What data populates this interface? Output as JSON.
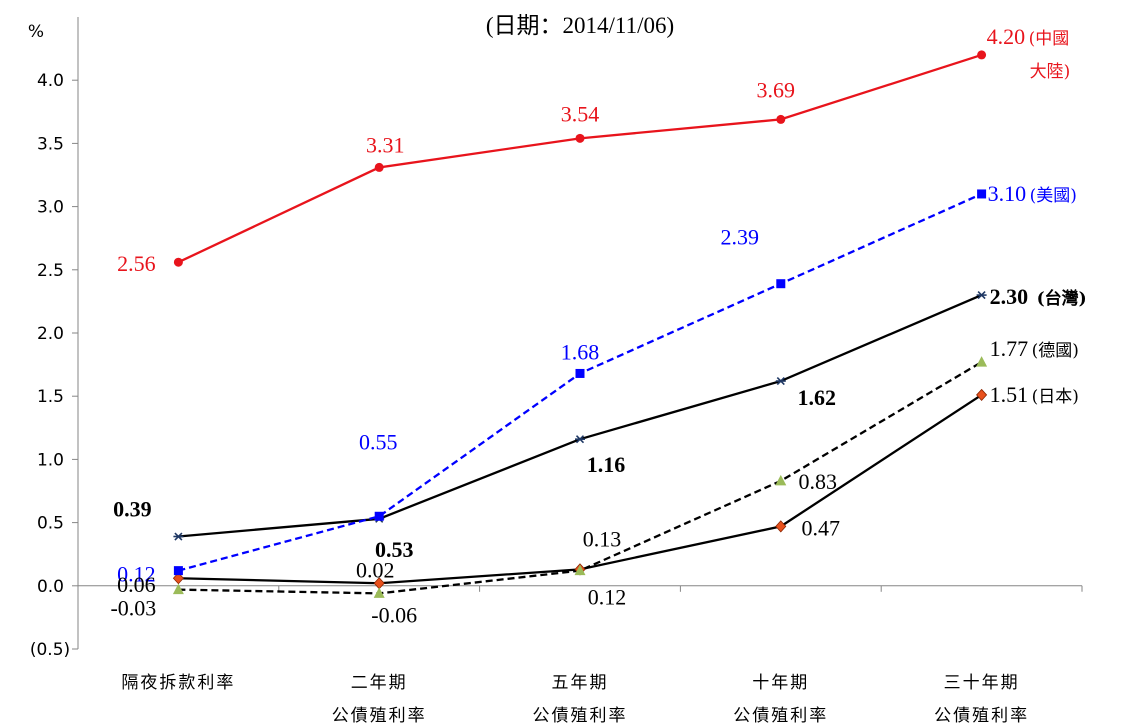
{
  "chart_data": {
    "type": "line",
    "title": "(日期：2014/11/06)",
    "y_unit_label": "%",
    "ylim": [
      -0.5,
      4.5
    ],
    "y_ticks": [
      "(0.5)",
      "0.0",
      "0.5",
      "1.0",
      "1.5",
      "2.0",
      "2.5",
      "3.0",
      "3.5",
      "4.0"
    ],
    "y_tick_values": [
      -0.5,
      0,
      0.5,
      1.0,
      1.5,
      2.0,
      2.5,
      3.0,
      3.5,
      4.0
    ],
    "categories": [
      [
        "隔夜拆款利率"
      ],
      [
        "二年期",
        "公債殖利率"
      ],
      [
        "五年期",
        "公債殖利率"
      ],
      [
        "十年期",
        "公債殖利率"
      ],
      [
        "三十年期",
        "公債殖利率"
      ]
    ],
    "grid": false,
    "series": [
      {
        "name": "(中國大陸)",
        "color": "#E8141C",
        "dash": "solid",
        "marker": "circle",
        "values": [
          2.56,
          3.31,
          3.54,
          3.69,
          4.2
        ],
        "labels": [
          "2.56",
          "3.31",
          "3.54",
          "3.69",
          "4.20"
        ],
        "bold": false
      },
      {
        "name": "(美國)",
        "color": "#0000FF",
        "dash": "dashed",
        "marker": "square",
        "values": [
          0.12,
          0.55,
          1.68,
          2.39,
          3.1
        ],
        "labels": [
          "0.12",
          "0.55",
          "1.68",
          "2.39",
          "3.10"
        ],
        "bold": false
      },
      {
        "name": "(台灣)",
        "color": "#000000",
        "dash": "solid",
        "marker": "star",
        "values": [
          0.39,
          0.53,
          1.16,
          1.62,
          2.3
        ],
        "labels": [
          "0.39",
          "0.53",
          "1.16",
          "1.62",
          "2.30"
        ],
        "bold": true
      },
      {
        "name": "(德國)",
        "color": "#000000",
        "dash": "dashed",
        "marker": "triangle",
        "marker_color": "#9BBB59",
        "values": [
          -0.03,
          -0.06,
          0.12,
          0.83,
          1.77
        ],
        "labels": [
          "-0.03",
          "-0.06",
          "0.12",
          "0.83",
          "1.77"
        ],
        "bold": false
      },
      {
        "name": "(日本)",
        "color": "#000000",
        "dash": "solid",
        "marker": "diamond",
        "marker_color": "#E8501C",
        "values": [
          0.06,
          0.02,
          0.13,
          0.47,
          1.51
        ],
        "labels": [
          "0.06",
          "0.02",
          "0.13",
          "0.47",
          "1.51"
        ],
        "bold": false
      }
    ]
  }
}
